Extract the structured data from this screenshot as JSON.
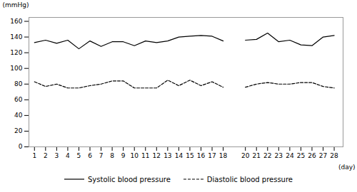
{
  "chart_data": {
    "type": "line",
    "x": [
      1,
      2,
      3,
      4,
      5,
      6,
      7,
      8,
      9,
      10,
      11,
      12,
      13,
      14,
      15,
      16,
      17,
      18,
      null,
      20,
      21,
      22,
      23,
      24,
      25,
      26,
      27,
      28
    ],
    "series": [
      {
        "name": "Systolic blood pressure",
        "color": "#000000",
        "line_style": "solid",
        "values": [
          133,
          136,
          132,
          136,
          125,
          135,
          128,
          134,
          134,
          129,
          135,
          133,
          135,
          140,
          141,
          142,
          141,
          135,
          null,
          136,
          137,
          145,
          134,
          136,
          130,
          129,
          140,
          142
        ]
      },
      {
        "name": "Diastolic blood pressure",
        "color": "#000000",
        "line_style": "dashed",
        "values": [
          83,
          77,
          80,
          75,
          75,
          78,
          80,
          84,
          84,
          75,
          75,
          75,
          85,
          78,
          85,
          78,
          83,
          76,
          null,
          76,
          80,
          82,
          80,
          80,
          82,
          82,
          77,
          75
        ]
      }
    ],
    "xlabel": "(day)",
    "ylabel": "(mmHg)",
    "xlim": [
      0.5,
      28.8
    ],
    "xticks": [
      1,
      2,
      3,
      4,
      5,
      6,
      7,
      8,
      9,
      10,
      11,
      12,
      13,
      14,
      15,
      16,
      17,
      18,
      20,
      21,
      22,
      23,
      24,
      25,
      26,
      27,
      28
    ],
    "ylim": [
      0,
      165
    ],
    "yticks": [
      0,
      20,
      40,
      60,
      80,
      100,
      120,
      140,
      160
    ],
    "grid": false,
    "legend": "bottom"
  }
}
